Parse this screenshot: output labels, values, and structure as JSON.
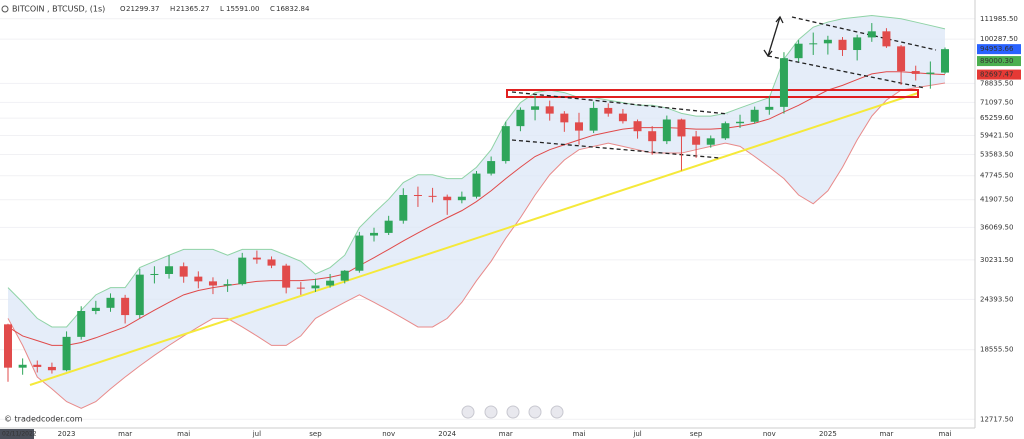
{
  "header": {
    "symbol": "BITCOIN , BTCUSD, (1s)",
    "ohlc_names": [
      "O",
      "H",
      "L",
      "C"
    ],
    "ohlc": [
      21299.37,
      21365.27,
      {
        "value": 15591,
        "label": "15591.00"
      },
      16832.84
    ]
  },
  "watermark": "© tradedcoder.com",
  "chart_data": {
    "type": "candlestick",
    "log_scale": true,
    "grid": true,
    "up_color": "#2ea55a",
    "down_color": "#e14b4b",
    "categories": [
      "02/11/2022",
      null,
      null,
      null,
      "2023",
      null,
      null,
      null,
      "mar",
      null,
      null,
      null,
      "mai",
      null,
      null,
      null,
      null,
      "jul",
      null,
      null,
      null,
      "sep",
      null,
      null,
      null,
      null,
      "nov",
      null,
      null,
      null,
      "2024",
      null,
      null,
      null,
      "mar",
      null,
      null,
      null,
      null,
      "mai",
      null,
      null,
      null,
      "jul",
      null,
      null,
      null,
      "sep",
      null,
      null,
      null,
      null,
      "nov",
      null,
      null,
      null,
      "2025",
      null,
      null,
      null,
      "mar",
      null,
      null,
      null,
      "mai"
    ],
    "open": [
      21299.37,
      16832.84,
      17100,
      16900,
      16600,
      19900,
      22900,
      23300,
      24600,
      22400,
      27900,
      28000,
      29200,
      27600,
      26900,
      26300,
      26500,
      30600,
      30300,
      29300,
      26000,
      25900,
      26300,
      27000,
      28500,
      34500,
      35000,
      37400,
      43000,
      42800,
      42600,
      41800,
      42600,
      48300,
      51700,
      62500,
      68300,
      69600,
      66900,
      63800,
      61000,
      69000,
      66900,
      64200,
      60800,
      57600,
      64800,
      59100,
      56500,
      58500,
      63500,
      64000,
      68300,
      69400,
      90400,
      97800,
      98000,
      99900,
      94500,
      101200,
      104600,
      96400,
      84300,
      83000,
      83600
    ],
    "high": [
      21365.27,
      17700,
      17500,
      17300,
      20500,
      23500,
      24200,
      25200,
      25000,
      28800,
      29200,
      31000,
      29800,
      28400,
      27500,
      27200,
      31400,
      31800,
      30800,
      29600,
      26800,
      27300,
      28000,
      28600,
      35200,
      36000,
      38400,
      44600,
      45000,
      44700,
      43100,
      43800,
      49000,
      53000,
      64000,
      69200,
      73800,
      71800,
      67800,
      67200,
      71400,
      70700,
      68600,
      64800,
      62500,
      66200,
      65100,
      60900,
      59400,
      64100,
      66500,
      69500,
      73600,
      93400,
      99700,
      103900,
      102100,
      101400,
      102700,
      109400,
      106400,
      97100,
      86800,
      88800,
      95800
    ],
    "low": [
      15591,
      16200,
      16400,
      16300,
      16500,
      19600,
      22500,
      22800,
      21400,
      22000,
      26600,
      27300,
      26700,
      25900,
      25100,
      25400,
      26300,
      29600,
      28900,
      25200,
      25000,
      25400,
      26000,
      26600,
      28200,
      33400,
      34600,
      36800,
      40300,
      41300,
      38600,
      41100,
      42200,
      47800,
      51000,
      60800,
      64500,
      64400,
      60600,
      56500,
      60200,
      65800,
      63400,
      58400,
      53500,
      56700,
      49100,
      52600,
      55600,
      58000,
      61900,
      63400,
      66500,
      66900,
      88800,
      92000,
      92200,
      91500,
      89300,
      98800,
      95600,
      78200,
      80100,
      76600,
      83100
    ],
    "close": [
      16832.84,
      17100,
      16900,
      16600,
      19900,
      22900,
      23300,
      24600,
      22400,
      27900,
      28000,
      29200,
      27600,
      26900,
      26300,
      26500,
      30600,
      30300,
      29300,
      26000,
      25900,
      26300,
      27000,
      28500,
      34500,
      35000,
      37400,
      43000,
      42800,
      42600,
      41800,
      42600,
      48300,
      51700,
      62500,
      68300,
      69600,
      66900,
      63800,
      61000,
      69000,
      66900,
      64200,
      60800,
      57600,
      64800,
      59100,
      56500,
      58500,
      63500,
      64000,
      68300,
      69400,
      90400,
      97800,
      98000,
      99900,
      94500,
      101200,
      104600,
      96400,
      84300,
      83000,
      83600,
      94953.66
    ],
    "bands": {
      "fill": "#dce7f7",
      "upper_color": "#8fd3a6",
      "lower_color": "#e88a8a",
      "upper": [
        26000,
        24000,
        22000,
        21000,
        21000,
        23000,
        25000,
        26000,
        26000,
        29000,
        30000,
        31000,
        32000,
        32000,
        32000,
        31000,
        32000,
        32000,
        32000,
        31000,
        30000,
        28000,
        29000,
        31000,
        36000,
        39000,
        42000,
        46000,
        48000,
        48000,
        47000,
        47000,
        50000,
        55000,
        64000,
        71000,
        75000,
        76000,
        75000,
        73000,
        73000,
        72000,
        71000,
        70000,
        70000,
        69000,
        67000,
        66000,
        66000,
        67000,
        69000,
        71000,
        73000,
        90000,
        100000,
        107000,
        110000,
        112000,
        113000,
        114000,
        113000,
        112000,
        110000,
        108000,
        106000
      ],
      "lower": [
        22000,
        19000,
        16000,
        15000,
        14000,
        13500,
        14000,
        15000,
        16000,
        17000,
        18000,
        19000,
        20000,
        21000,
        22000,
        22000,
        21000,
        20000,
        19000,
        19000,
        20000,
        22000,
        23000,
        24000,
        25000,
        24000,
        23000,
        22000,
        21000,
        21000,
        22000,
        24000,
        27000,
        30000,
        34000,
        38000,
        43000,
        48000,
        52000,
        55000,
        56000,
        57000,
        56000,
        55000,
        54000,
        54000,
        54000,
        55000,
        56000,
        57000,
        56000,
        53000,
        50000,
        47000,
        43000,
        41000,
        44000,
        50000,
        58000,
        66000,
        72000,
        76000,
        77000,
        78000,
        79000
      ]
    },
    "ma": {
      "color": "#e04a4a",
      "values": [
        21000,
        20000,
        19500,
        19000,
        19000,
        19300,
        19800,
        20400,
        21000,
        22000,
        23000,
        24000,
        25000,
        25600,
        26000,
        26300,
        26600,
        26900,
        27000,
        27000,
        27000,
        27200,
        27500,
        28000,
        29300,
        30600,
        32000,
        33500,
        35000,
        36500,
        38000,
        39500,
        41500,
        44000,
        47000,
        50000,
        53000,
        55000,
        56500,
        58000,
        59500,
        60500,
        61500,
        62000,
        62000,
        62000,
        61800,
        61500,
        61500,
        61800,
        62500,
        63500,
        65000,
        67500,
        70000,
        73000,
        76000,
        78000,
        80500,
        83000,
        84000,
        84000,
        83500,
        83000,
        82700
      ]
    },
    "ylim": [
      12130,
      124000
    ],
    "yticks": [
      {
        "value": 111985.5,
        "label": "111985.50"
      },
      {
        "value": 100287.5,
        "label": "100287.50"
      },
      {
        "value": 78835.5,
        "label": "78835.50"
      },
      {
        "value": 71097.5,
        "label": "71097.50"
      },
      {
        "value": 65259.6,
        "label": "65259.60"
      },
      {
        "value": 59421.5,
        "label": "59421.50"
      },
      {
        "value": 53583.5,
        "label": "53583.50"
      },
      {
        "value": 47745.5,
        "label": "47745.50"
      },
      {
        "value": 41907.5,
        "label": "41907.50"
      },
      {
        "value": 36069.5,
        "label": "36069.50"
      },
      {
        "value": 30231.5,
        "label": "30231.50"
      },
      {
        "value": 24393.5,
        "label": "24393.50"
      },
      {
        "value": 18555.5,
        "label": "18555.50"
      },
      {
        "value": 12717.5,
        "label": "12717.50"
      }
    ],
    "price_labels": [
      {
        "value": 94953.66,
        "color": "#2962ff"
      },
      {
        "value": 89000.3,
        "label": "89000.30",
        "color": "#4caf50"
      },
      {
        "value": 82697.47,
        "color": "#e53935"
      }
    ]
  }
}
